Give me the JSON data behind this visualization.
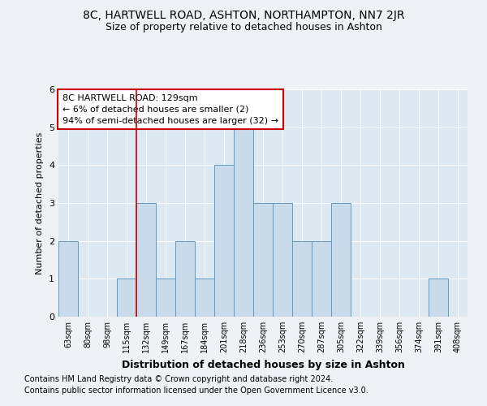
{
  "title1": "8C, HARTWELL ROAD, ASHTON, NORTHAMPTON, NN7 2JR",
  "title2": "Size of property relative to detached houses in Ashton",
  "xlabel": "Distribution of detached houses by size in Ashton",
  "ylabel": "Number of detached properties",
  "categories": [
    "63sqm",
    "80sqm",
    "98sqm",
    "115sqm",
    "132sqm",
    "149sqm",
    "167sqm",
    "184sqm",
    "201sqm",
    "218sqm",
    "236sqm",
    "253sqm",
    "270sqm",
    "287sqm",
    "305sqm",
    "322sqm",
    "339sqm",
    "356sqm",
    "374sqm",
    "391sqm",
    "408sqm"
  ],
  "values": [
    2,
    0,
    0,
    1,
    3,
    1,
    2,
    1,
    4,
    5,
    3,
    3,
    2,
    2,
    3,
    0,
    0,
    0,
    0,
    1,
    0
  ],
  "bar_color": "#c9daea",
  "bar_edge_color": "#6699bb",
  "highlight_line_index": 4,
  "highlight_line_color": "#cc0000",
  "annotation_text": "8C HARTWELL ROAD: 129sqm\n← 6% of detached houses are smaller (2)\n94% of semi-detached houses are larger (32) →",
  "annotation_box_color": "#ffffff",
  "annotation_box_edge_color": "#cc0000",
  "footnote1": "Contains HM Land Registry data © Crown copyright and database right 2024.",
  "footnote2": "Contains public sector information licensed under the Open Government Licence v3.0.",
  "ylim": [
    0,
    6
  ],
  "bg_color": "#eef2f7",
  "plot_bg_color": "#dce8f2"
}
